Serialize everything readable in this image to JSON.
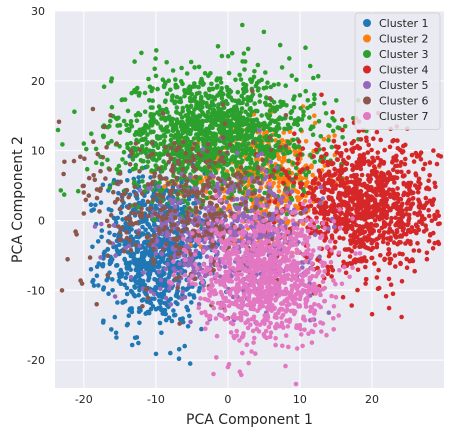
{
  "chart_data": {
    "type": "scatter",
    "title": "",
    "xlabel": "PCA Component 1",
    "ylabel": "PCA Component 2",
    "xlim": [
      -24,
      30
    ],
    "ylim": [
      -24,
      30
    ],
    "xticks": [
      -20,
      -10,
      0,
      10,
      20
    ],
    "yticks": [
      -20,
      -10,
      0,
      10,
      20,
      30
    ],
    "grid": true,
    "legend_position": "top-right",
    "series": [
      {
        "name": "Cluster 1",
        "color": "#1f77b4",
        "center": [
          -10,
          -4
        ],
        "spread": [
          3.5,
          5.5
        ],
        "count": 900,
        "points": [
          [
            -14,
            -15
          ],
          [
            -8,
            -19
          ],
          [
            -18,
            -3
          ],
          [
            -19,
            -7
          ],
          [
            -6,
            -18
          ],
          [
            -12,
            2
          ],
          [
            -16,
            -10
          ]
        ]
      },
      {
        "name": "Cluster 2",
        "color": "#ff7f0e",
        "center": [
          5,
          6
        ],
        "spread": [
          5,
          4
        ],
        "count": 500,
        "points": [
          [
            14,
            12
          ],
          [
            12,
            15
          ],
          [
            9,
            8
          ],
          [
            2,
            3
          ],
          [
            16,
            6
          ],
          [
            10,
            2
          ]
        ]
      },
      {
        "name": "Cluster 3",
        "color": "#2ca02c",
        "center": [
          -2,
          12
        ],
        "spread": [
          7,
          4.5
        ],
        "count": 1500,
        "points": [
          [
            2,
            28
          ],
          [
            -12,
            24
          ],
          [
            5,
            27
          ],
          [
            -20,
            11
          ],
          [
            12,
            18
          ],
          [
            -4,
            22
          ]
        ]
      },
      {
        "name": "Cluster 4",
        "color": "#d62728",
        "center": [
          19,
          2
        ],
        "spread": [
          5,
          4.5
        ],
        "count": 1100,
        "points": [
          [
            27,
            2
          ],
          [
            26,
            5
          ],
          [
            13,
            18
          ],
          [
            12,
            -7
          ],
          [
            16,
            -11
          ],
          [
            23,
            9
          ]
        ]
      },
      {
        "name": "Cluster 5",
        "color": "#9467bd",
        "center": [
          0,
          -2
        ],
        "spread": [
          6,
          4.5
        ],
        "count": 600,
        "points": [
          [
            -4,
            -12
          ],
          [
            6,
            4
          ],
          [
            -8,
            3
          ],
          [
            8,
            -8
          ]
        ]
      },
      {
        "name": "Cluster 6",
        "color": "#8c564b",
        "center": [
          -6,
          2
        ],
        "spread": [
          7,
          6
        ],
        "count": 400,
        "points": [
          [
            -21,
            -2
          ],
          [
            -20,
            4
          ],
          [
            -20,
            1
          ],
          [
            -17,
            6
          ],
          [
            0,
            -14
          ]
        ]
      },
      {
        "name": "Cluster 7",
        "color": "#e377c2",
        "center": [
          5,
          -8
        ],
        "spread": [
          4.5,
          4.5
        ],
        "count": 1000,
        "points": [
          [
            -2,
            -22
          ],
          [
            0,
            -21
          ],
          [
            10,
            -15
          ],
          [
            15,
            -11
          ],
          [
            13,
            -6
          ],
          [
            2,
            -19
          ]
        ]
      }
    ]
  }
}
